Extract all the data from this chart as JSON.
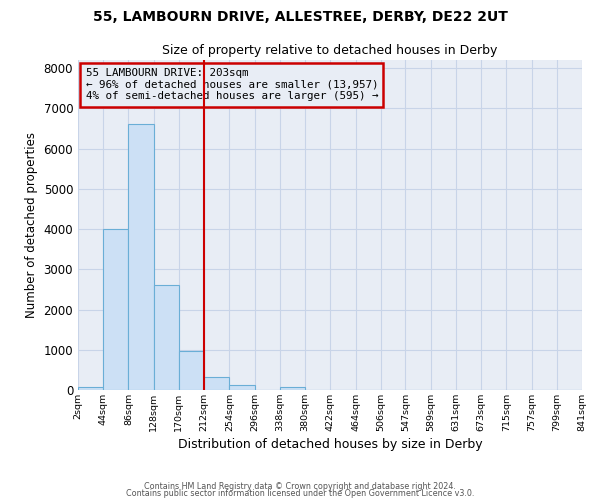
{
  "title": "55, LAMBOURN DRIVE, ALLESTREE, DERBY, DE22 2UT",
  "subtitle": "Size of property relative to detached houses in Derby",
  "xlabel": "Distribution of detached houses by size in Derby",
  "ylabel": "Number of detached properties",
  "bin_edges": [
    2,
    44,
    86,
    128,
    170,
    212,
    254,
    296,
    338,
    380,
    422,
    464,
    506,
    547,
    589,
    631,
    673,
    715,
    757,
    799,
    841
  ],
  "bin_labels": [
    "2sqm",
    "44sqm",
    "86sqm",
    "128sqm",
    "170sqm",
    "212sqm",
    "254sqm",
    "296sqm",
    "338sqm",
    "380sqm",
    "422sqm",
    "464sqm",
    "506sqm",
    "547sqm",
    "589sqm",
    "631sqm",
    "673sqm",
    "715sqm",
    "757sqm",
    "799sqm",
    "841sqm"
  ],
  "counts": [
    70,
    4000,
    6600,
    2600,
    970,
    330,
    120,
    0,
    80,
    0,
    0,
    0,
    0,
    0,
    0,
    0,
    0,
    0,
    0,
    0
  ],
  "bar_color": "#cce0f5",
  "bar_edge_color": "#6aaed6",
  "property_line_x": 212,
  "property_line_color": "#cc0000",
  "annotation_title": "55 LAMBOURN DRIVE: 203sqm",
  "annotation_line1": "← 96% of detached houses are smaller (13,957)",
  "annotation_line2": "4% of semi-detached houses are larger (595) →",
  "annotation_box_color": "#cc0000",
  "ylim": [
    0,
    8200
  ],
  "yticks": [
    0,
    1000,
    2000,
    3000,
    4000,
    5000,
    6000,
    7000,
    8000
  ],
  "grid_color": "#c8d4e8",
  "plot_bg_color": "#e8edf5",
  "fig_bg_color": "#ffffff",
  "footer1": "Contains HM Land Registry data © Crown copyright and database right 2024.",
  "footer2": "Contains public sector information licensed under the Open Government Licence v3.0."
}
